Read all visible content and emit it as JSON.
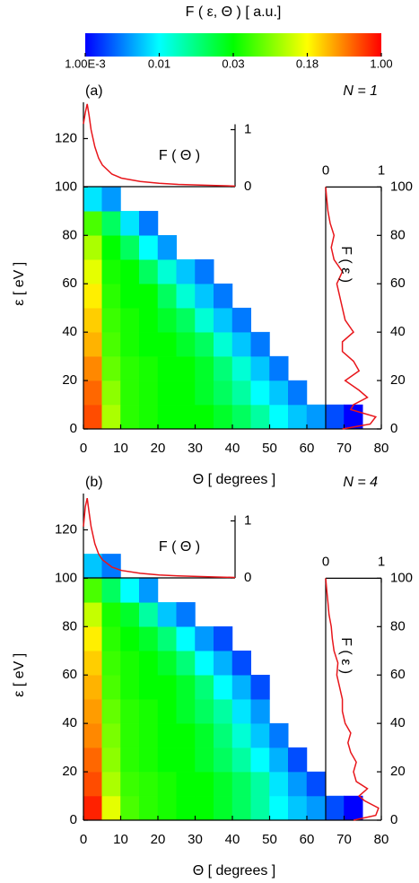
{
  "colorbar": {
    "title": "F ( ε, Θ ) [ a.u.]",
    "colormap": "rainbow",
    "ticks": [
      {
        "value": 0.001,
        "label": "1.00E-3"
      },
      0.01,
      0.03,
      0.18,
      {
        "value": 1,
        "label": "1.00"
      }
    ]
  },
  "chart_data": [
    {
      "type": "heatmap",
      "label": "(a)",
      "annotation": "N = 1",
      "xlabel": "Θ [ degrees ]",
      "ylabel": "ε [ eV ]",
      "xlim": [
        0,
        80
      ],
      "ylim": [
        0,
        135
      ],
      "xticks": [
        0,
        10,
        20,
        30,
        40,
        50,
        60,
        70,
        80
      ],
      "yticks": [
        0,
        20,
        40,
        60,
        80,
        100,
        120
      ],
      "x_bins": [
        0,
        5,
        10,
        15,
        20,
        25,
        30,
        35,
        40,
        45,
        50,
        55,
        60,
        65,
        70,
        75,
        80
      ],
      "y_bins": [
        0,
        10,
        20,
        30,
        40,
        50,
        60,
        70,
        80,
        90,
        100
      ],
      "z": [
        [
          0.6,
          0.1,
          0.04,
          0.035,
          0.03,
          0.03,
          0.03,
          0.025,
          0.02,
          0.015,
          0.01,
          0.006,
          0.004,
          0.002,
          0.001,
          null
        ],
        [
          0.5,
          0.08,
          0.04,
          0.035,
          0.03,
          0.03,
          0.025,
          0.02,
          0.015,
          0.01,
          0.006,
          0.003,
          null,
          null,
          null,
          null
        ],
        [
          0.4,
          0.06,
          0.04,
          0.035,
          0.03,
          0.03,
          0.025,
          0.018,
          0.012,
          0.006,
          0.003,
          null,
          null,
          null,
          null,
          null
        ],
        [
          0.3,
          0.05,
          0.035,
          0.03,
          0.03,
          0.025,
          0.02,
          0.012,
          0.006,
          0.003,
          null,
          null,
          null,
          null,
          null,
          null
        ],
        [
          0.25,
          0.045,
          0.035,
          0.03,
          0.025,
          0.02,
          0.012,
          0.006,
          0.003,
          null,
          null,
          null,
          null,
          null,
          null,
          null
        ],
        [
          0.2,
          0.04,
          0.03,
          0.03,
          0.02,
          0.012,
          0.006,
          0.003,
          null,
          null,
          null,
          null,
          null,
          null,
          null,
          null
        ],
        [
          0.15,
          0.035,
          0.03,
          0.02,
          0.012,
          0.006,
          0.003,
          null,
          null,
          null,
          null,
          null,
          null,
          null,
          null,
          null
        ],
        [
          0.1,
          0.03,
          0.02,
          0.01,
          0.004,
          null,
          null,
          null,
          null,
          null,
          null,
          null,
          null,
          null,
          null,
          null
        ],
        [
          0.05,
          0.02,
          0.008,
          0.003,
          null,
          null,
          null,
          null,
          null,
          null,
          null,
          null,
          null,
          null,
          null,
          null
        ],
        [
          0.008,
          0.004,
          null,
          null,
          null,
          null,
          null,
          null,
          null,
          null,
          null,
          null,
          null,
          null,
          null,
          null
        ]
      ],
      "insets": [
        {
          "type": "line",
          "label": "F ( Θ )",
          "color": "#e8161b",
          "xlim": [
            0,
            80
          ],
          "ylim": [
            0,
            1.48
          ],
          "yticks": [
            0,
            1
          ],
          "x": [
            0,
            1,
            2,
            3,
            4,
            6,
            8,
            10,
            15,
            20,
            30,
            40,
            50,
            60,
            70,
            80
          ],
          "values": [
            1.1,
            1.3,
            1.45,
            1.25,
            1.0,
            0.7,
            0.5,
            0.38,
            0.22,
            0.15,
            0.09,
            0.06,
            0.04,
            0.03,
            0.02,
            0.01
          ]
        },
        {
          "type": "line",
          "orientation": "vertical",
          "label": "F ( ε )",
          "color": "#e8161b",
          "xlim": [
            0,
            1
          ],
          "ylim": [
            0,
            100
          ],
          "xticks": [
            0,
            1
          ],
          "yticks": [
            0,
            20,
            40,
            60,
            80,
            100
          ],
          "x": [
            0,
            2,
            5,
            8,
            10,
            13,
            16,
            20,
            24,
            28,
            32,
            36,
            40,
            45,
            50,
            55,
            60,
            65,
            70,
            75,
            80,
            85,
            90,
            95,
            100
          ],
          "values": [
            0.3,
            0.8,
            0.9,
            0.45,
            0.5,
            0.75,
            0.6,
            0.35,
            0.6,
            0.5,
            0.3,
            0.3,
            0.5,
            0.35,
            0.3,
            0.25,
            0.2,
            0.3,
            0.15,
            0.1,
            0.15,
            0.08,
            0.04,
            0.02,
            0
          ]
        }
      ]
    },
    {
      "type": "heatmap",
      "label": "(b)",
      "annotation": "N = 4",
      "xlabel": "Θ [ degrees ]",
      "ylabel": "ε [ eV ]",
      "xlim": [
        0,
        80
      ],
      "ylim": [
        0,
        135
      ],
      "xticks": [
        0,
        10,
        20,
        30,
        40,
        50,
        60,
        70,
        80
      ],
      "yticks": [
        0,
        20,
        40,
        60,
        80,
        100,
        120
      ],
      "x_bins": [
        0,
        5,
        10,
        15,
        20,
        25,
        30,
        35,
        40,
        45,
        50,
        55,
        60,
        65,
        70,
        75,
        80
      ],
      "y_bins": [
        0,
        10,
        20,
        30,
        40,
        50,
        60,
        70,
        80,
        90,
        100,
        110
      ],
      "z": [
        [
          0.8,
          0.15,
          0.05,
          0.04,
          0.035,
          0.03,
          0.03,
          0.025,
          0.02,
          0.015,
          0.01,
          0.006,
          0.004,
          0.002,
          0.001,
          null
        ],
        [
          0.6,
          0.1,
          0.045,
          0.04,
          0.035,
          0.03,
          0.03,
          0.025,
          0.02,
          0.015,
          0.008,
          0.004,
          0.002,
          null,
          null,
          null
        ],
        [
          0.5,
          0.08,
          0.04,
          0.035,
          0.03,
          0.03,
          0.025,
          0.02,
          0.015,
          0.01,
          0.005,
          0.002,
          null,
          null,
          null,
          null
        ],
        [
          0.4,
          0.07,
          0.04,
          0.035,
          0.03,
          0.03,
          0.025,
          0.018,
          0.012,
          0.006,
          0.003,
          null,
          null,
          null,
          null,
          null
        ],
        [
          0.35,
          0.06,
          0.04,
          0.035,
          0.03,
          0.025,
          0.02,
          0.015,
          0.008,
          0.004,
          null,
          null,
          null,
          null,
          null,
          null
        ],
        [
          0.3,
          0.05,
          0.035,
          0.03,
          0.03,
          0.025,
          0.018,
          0.01,
          0.005,
          0.002,
          null,
          null,
          null,
          null,
          null,
          null
        ],
        [
          0.25,
          0.045,
          0.035,
          0.03,
          0.025,
          0.018,
          0.01,
          0.005,
          0.002,
          null,
          null,
          null,
          null,
          null,
          null,
          null
        ],
        [
          0.2,
          0.04,
          0.03,
          0.025,
          0.018,
          0.01,
          0.004,
          0.002,
          null,
          null,
          null,
          null,
          null,
          null,
          null,
          null
        ],
        [
          0.12,
          0.035,
          0.025,
          0.015,
          0.006,
          0.003,
          null,
          null,
          null,
          null,
          null,
          null,
          null,
          null,
          null,
          null
        ],
        [
          0.05,
          0.02,
          0.01,
          0.004,
          null,
          null,
          null,
          null,
          null,
          null,
          null,
          null,
          null,
          null,
          null,
          null
        ],
        [
          0.006,
          0.003,
          null,
          null,
          null,
          null,
          null,
          null,
          null,
          null,
          null,
          null,
          null,
          null,
          null,
          null
        ]
      ],
      "insets": [
        {
          "type": "line",
          "label": "F ( Θ )",
          "color": "#e8161b",
          "xlim": [
            0,
            80
          ],
          "ylim": [
            0,
            1.48
          ],
          "yticks": [
            0,
            1
          ],
          "x": [
            0,
            1,
            2,
            3,
            4,
            6,
            8,
            10,
            15,
            20,
            30,
            40,
            50,
            60,
            70,
            80
          ],
          "values": [
            0.9,
            1.25,
            1.4,
            1.15,
            0.9,
            0.6,
            0.42,
            0.32,
            0.19,
            0.13,
            0.08,
            0.05,
            0.035,
            0.025,
            0.015,
            0.008
          ]
        },
        {
          "type": "line",
          "orientation": "vertical",
          "label": "F ( ε )",
          "color": "#e8161b",
          "xlim": [
            0,
            1
          ],
          "ylim": [
            0,
            100
          ],
          "xticks": [
            0,
            1
          ],
          "yticks": [
            0,
            20,
            40,
            60,
            80,
            100
          ],
          "x": [
            0,
            2,
            5,
            8,
            10,
            13,
            16,
            20,
            24,
            28,
            32,
            36,
            40,
            45,
            50,
            55,
            60,
            65,
            70,
            75,
            80,
            85,
            90,
            95,
            100
          ],
          "values": [
            0.5,
            0.9,
            0.95,
            0.7,
            0.6,
            0.75,
            0.55,
            0.5,
            0.55,
            0.45,
            0.4,
            0.45,
            0.35,
            0.3,
            0.3,
            0.25,
            0.2,
            0.22,
            0.15,
            0.12,
            0.1,
            0.06,
            0.04,
            0.02,
            0
          ]
        }
      ]
    }
  ]
}
